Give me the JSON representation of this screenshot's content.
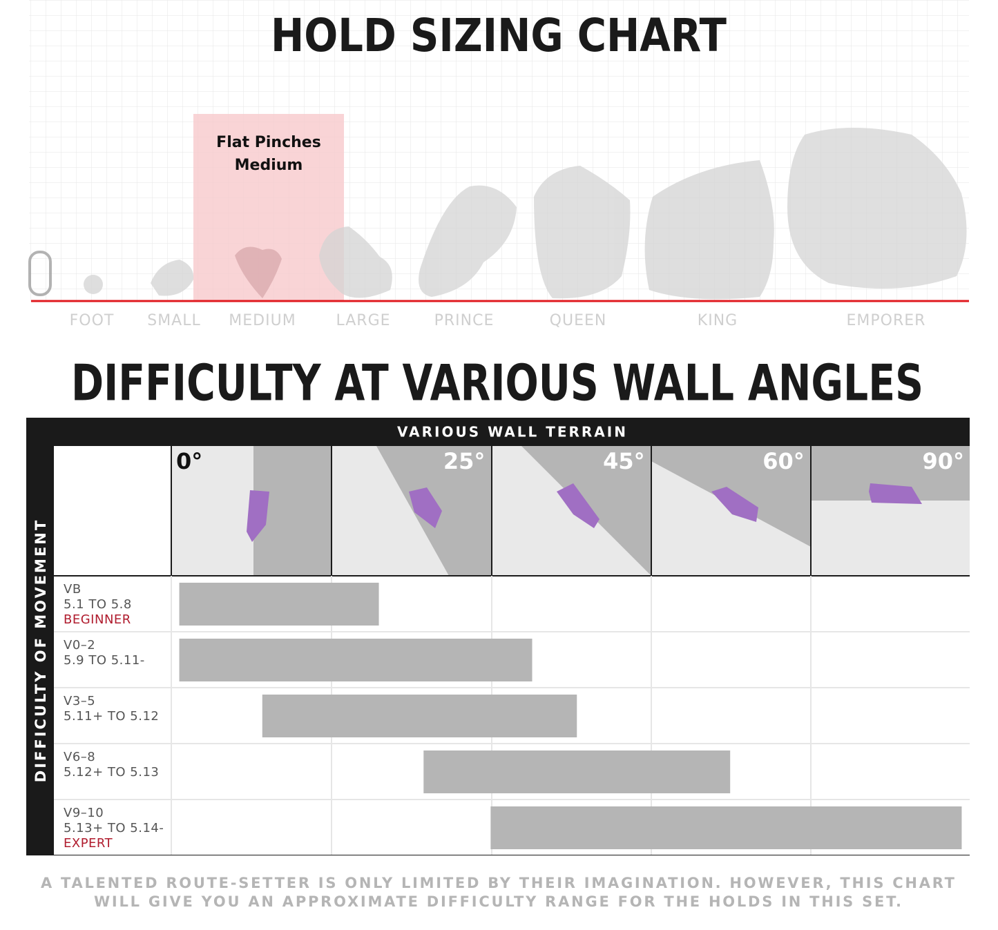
{
  "hold_sizing": {
    "title": "HOLD SIZING CHART",
    "highlight": {
      "line1": "Flat Pinches",
      "line2": "Medium"
    },
    "sizes": [
      "FOOT",
      "SMALL",
      "MEDIUM",
      "LARGE",
      "PRINCE",
      "QUEEN",
      "KING",
      "EMPORER"
    ]
  },
  "difficulty": {
    "title": "DIFFICULTY AT VARIOUS WALL ANGLES",
    "column_header": "VARIOUS WALL TERRAIN",
    "row_header": "DIFFICULTY OF MOVEMENT",
    "angles": [
      "0°",
      "25°",
      "45°",
      "60°",
      "90°"
    ],
    "rows": [
      {
        "grade": "VB",
        "yds": "5.1 TO 5.8",
        "level": "BEGINNER",
        "range": [
          0.05,
          1.3
        ]
      },
      {
        "grade": "V0–2",
        "yds": "5.9 TO 5.11-",
        "range": [
          0.05,
          2.26
        ]
      },
      {
        "grade": "V3–5",
        "yds": "5.11+ TO 5.12",
        "range": [
          0.57,
          2.54
        ]
      },
      {
        "grade": "V6–8",
        "yds": "5.12+ TO 5.13",
        "range": [
          1.58,
          3.5
        ]
      },
      {
        "grade": "V9–10",
        "yds": "5.13+ TO 5.14-",
        "level": "EXPERT",
        "range": [
          2.0,
          4.95
        ]
      }
    ]
  },
  "footer": {
    "line1": "A TALENTED ROUTE-SETTER IS ONLY LIMITED BY THEIR IMAGINATION. HOWEVER, THIS CHART",
    "line2": "WILL GIVE YOU AN APPROXIMATE DIFFICULTY RANGE FOR THE HOLDS IN THIS SET."
  }
}
